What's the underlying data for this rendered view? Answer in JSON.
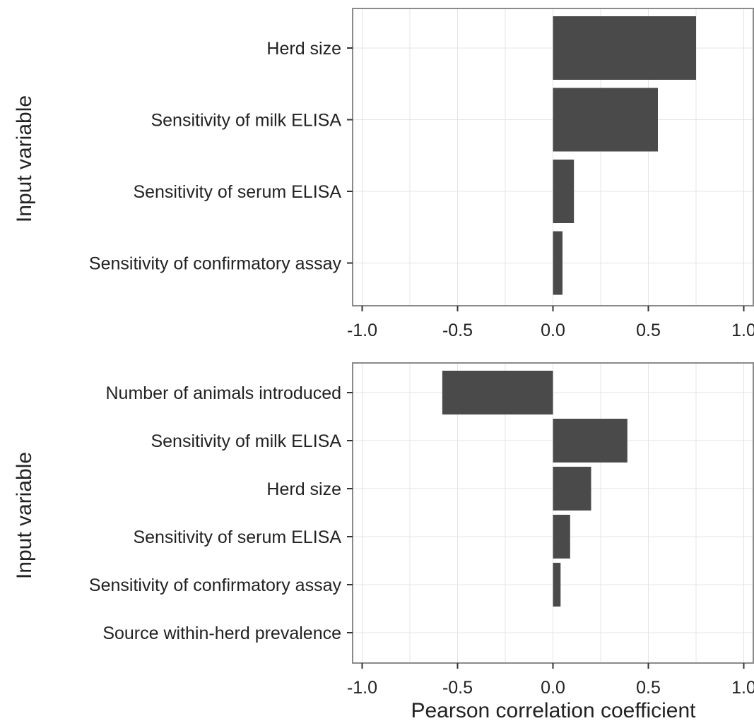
{
  "colors": {
    "bar": "#4a4a4a",
    "panel_border": "#8a8a8a",
    "grid": "#e4e4e4",
    "text": "#222222"
  },
  "chart_data": [
    {
      "type": "bar",
      "orientation": "horizontal",
      "categories": [
        "Herd size",
        "Sensitivity of milk ELISA",
        "Sensitivity of serum ELISA",
        "Sensitivity of confirmatory assay"
      ],
      "values": [
        0.75,
        0.55,
        0.11,
        0.05
      ],
      "xlabel": "",
      "ylabel": "Input variable",
      "xlim": [
        -1.05,
        1.05
      ],
      "xticks": [
        "-1.0",
        "-0.5",
        "0.0",
        "0.5",
        "1.0"
      ],
      "grid": true
    },
    {
      "type": "bar",
      "orientation": "horizontal",
      "categories": [
        "Number of animals introduced",
        "Sensitivity of milk ELISA",
        "Herd size",
        "Sensitivity of serum ELISA",
        "Sensitivity of confirmatory assay",
        "Source within-herd prevalence"
      ],
      "values": [
        -0.58,
        0.39,
        0.2,
        0.09,
        0.04,
        0.0
      ],
      "xlabel": "Pearson correlation coefficient",
      "ylabel": "Input variable",
      "xlim": [
        -1.05,
        1.05
      ],
      "xticks": [
        "-1.0",
        "-0.5",
        "0.0",
        "0.5",
        "1.0"
      ],
      "grid": true
    }
  ]
}
